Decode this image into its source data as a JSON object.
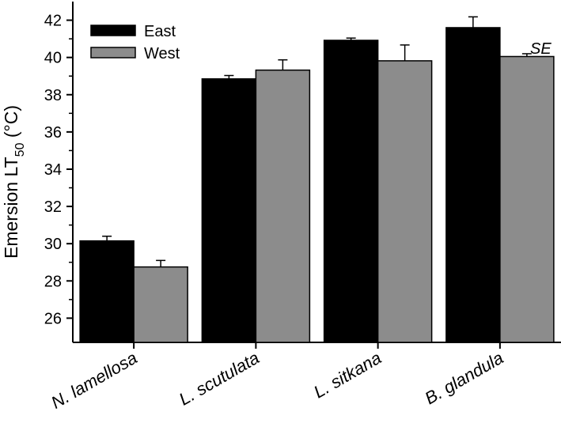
{
  "chart_data": {
    "type": "bar",
    "categories": [
      "N. lamellosa",
      "L. scutulata",
      "L. sitkana",
      "B. glandula"
    ],
    "series": [
      {
        "name": "East",
        "color": "#000000",
        "values": [
          30.15,
          38.85,
          40.92,
          41.6
        ],
        "errors": [
          0.25,
          0.18,
          0.12,
          0.58
        ]
      },
      {
        "name": "West",
        "color": "#8c8c8c",
        "values": [
          28.75,
          39.32,
          39.82,
          40.05
        ],
        "errors": [
          0.35,
          0.55,
          0.85,
          0.15
        ]
      }
    ],
    "ylabel_main": "Emersion LT",
    "ylabel_sub": "50",
    "ylabel_unit": " (°C)",
    "ylim": [
      24.7,
      43
    ],
    "yticks": [
      26,
      28,
      30,
      32,
      34,
      36,
      38,
      40,
      42
    ],
    "annotation": "SE",
    "legend_position": "top-left"
  }
}
